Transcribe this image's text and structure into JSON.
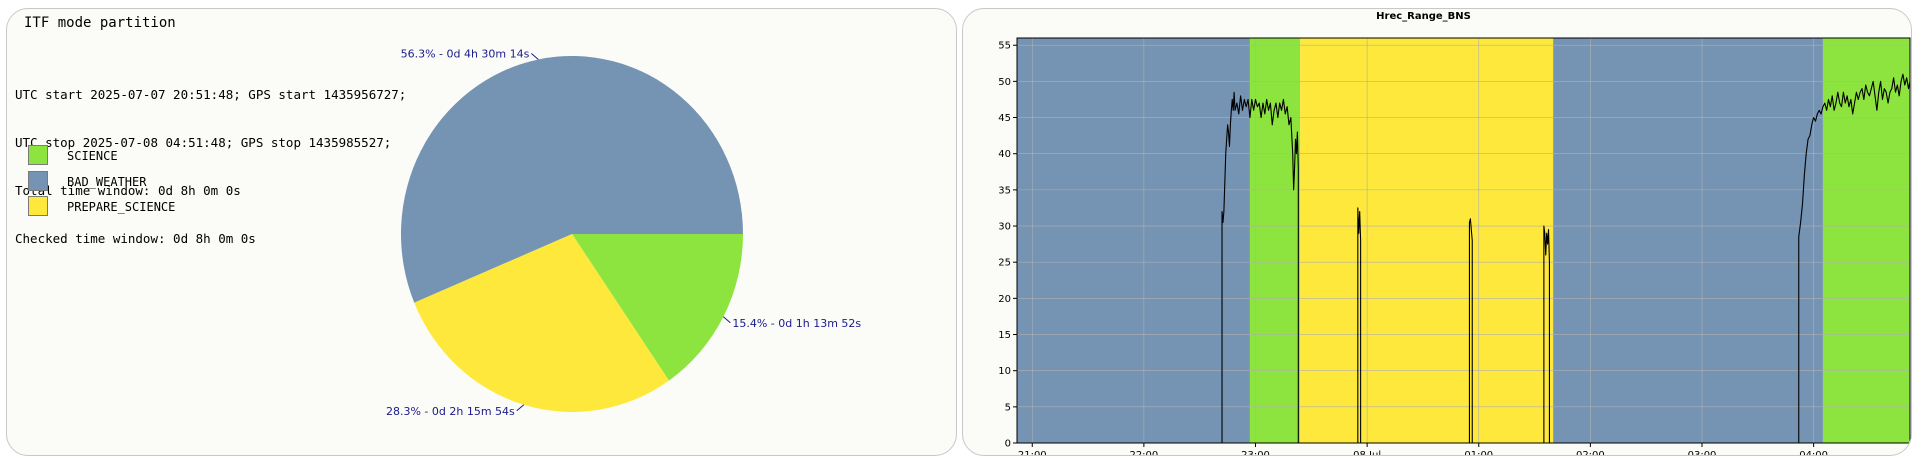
{
  "colors": {
    "science": "#8ee43e",
    "bad_weather": "#7593b3",
    "prepare_science": "#fde83b",
    "label_text": "#1a1a8c",
    "line": "#000000",
    "grid": "#b0b0b0"
  },
  "left_panel": {
    "title": "ITF mode partition",
    "info_lines": [
      "UTC start 2025-07-07 20:51:48; GPS start 1435956727;",
      "UTC stop 2025-07-08 04:51:48; GPS stop 1435985527;",
      "Total time window: 0d 8h 0m 0s",
      "Checked time window: 0d 8h 0m 0s"
    ],
    "legend": [
      {
        "label": "SCIENCE",
        "color": "#8ee43e"
      },
      {
        "label": "BAD_WEATHER",
        "color": "#7593b3"
      },
      {
        "label": "PREPARE_SCIENCE",
        "color": "#fde83b"
      }
    ]
  },
  "chart_data": [
    {
      "type": "pie",
      "slices": [
        {
          "name": "SCIENCE",
          "percent": 15.4,
          "label": "15.4% - 0d 1h 13m 52s",
          "color": "#8ee43e"
        },
        {
          "name": "PREPARE_SCIENCE",
          "percent": 28.3,
          "label": "28.3% - 0d 2h 15m 54s",
          "color": "#fde83b"
        },
        {
          "name": "BAD_WEATHER",
          "percent": 56.3,
          "label": "56.3% - 0d 4h 30m 14s",
          "color": "#7593b3"
        }
      ]
    },
    {
      "type": "line",
      "title": "Hrec_Range_BNS",
      "xlabel": "",
      "ylabel": "",
      "x_range": [
        "2025-07-07 20:51:48",
        "2025-07-08 04:51:48"
      ],
      "ylim": [
        0,
        56
      ],
      "yticks": [
        0,
        5,
        10,
        15,
        20,
        25,
        30,
        35,
        40,
        45,
        50,
        55
      ],
      "xticks": [
        {
          "time": "2025-07-07 21:00",
          "label": "21:00"
        },
        {
          "time": "2025-07-07 22:00",
          "label": "22:00"
        },
        {
          "time": "2025-07-07 23:00",
          "label": "23:00"
        },
        {
          "time": "2025-07-08 00:00",
          "label": "08 Jul"
        },
        {
          "time": "2025-07-08 01:00",
          "label": "01:00"
        },
        {
          "time": "2025-07-08 02:00",
          "label": "02:00"
        },
        {
          "time": "2025-07-08 03:00",
          "label": "03:00"
        },
        {
          "time": "2025-07-08 04:00",
          "label": "04:00"
        }
      ],
      "grid": true,
      "background_segments": [
        {
          "mode": "BAD_WEATHER",
          "start": "2025-07-07 20:51:48",
          "end": "2025-07-07 22:57:00"
        },
        {
          "mode": "SCIENCE",
          "start": "2025-07-07 22:57:00",
          "end": "2025-07-07 23:24:00"
        },
        {
          "mode": "PREPARE_SCIENCE",
          "start": "2025-07-07 23:24:00",
          "end": "2025-07-08 01:40:00"
        },
        {
          "mode": "BAD_WEATHER",
          "start": "2025-07-08 01:40:00",
          "end": "2025-07-08 04:05:00"
        },
        {
          "mode": "SCIENCE",
          "start": "2025-07-08 04:05:00",
          "end": "2025-07-08 04:51:48"
        }
      ],
      "series": [
        {
          "points": [
            [
              "2025-07-07 22:42:00",
              0
            ],
            [
              "2025-07-07 22:42:00",
              32
            ],
            [
              "2025-07-07 22:42:30",
              30.5
            ],
            [
              "2025-07-07 22:43:00",
              32
            ],
            [
              "2025-07-07 22:43:30",
              36
            ],
            [
              "2025-07-07 22:44:00",
              40
            ],
            [
              "2025-07-07 22:44:30",
              42
            ],
            [
              "2025-07-07 22:45:00",
              44
            ],
            [
              "2025-07-07 22:45:30",
              43
            ],
            [
              "2025-07-07 22:46:00",
              41
            ],
            [
              "2025-07-07 22:46:30",
              44
            ],
            [
              "2025-07-07 22:47:00",
              46
            ],
            [
              "2025-07-07 22:47:30",
              47.5
            ],
            [
              "2025-07-07 22:48:00",
              46
            ],
            [
              "2025-07-07 22:48:30",
              48.5
            ],
            [
              "2025-07-07 22:49:00",
              46
            ],
            [
              "2025-07-07 22:50:00",
              47
            ],
            [
              "2025-07-07 22:51:00",
              45.5
            ],
            [
              "2025-07-07 22:52:00",
              48
            ],
            [
              "2025-07-07 22:53:00",
              46
            ],
            [
              "2025-07-07 22:54:00",
              47.5
            ],
            [
              "2025-07-07 22:55:00",
              46.5
            ],
            [
              "2025-07-07 22:56:00",
              47.5
            ],
            [
              "2025-07-07 22:57:00",
              45
            ],
            [
              "2025-07-07 22:58:00",
              47.5
            ],
            [
              "2025-07-07 22:59:00",
              46
            ],
            [
              "2025-07-07 23:00:00",
              47.5
            ],
            [
              "2025-07-07 23:01:00",
              46.5
            ],
            [
              "2025-07-07 23:02:00",
              47
            ],
            [
              "2025-07-07 23:03:00",
              45
            ],
            [
              "2025-07-07 23:04:00",
              47
            ],
            [
              "2025-07-07 23:05:00",
              45.5
            ],
            [
              "2025-07-07 23:06:00",
              47.5
            ],
            [
              "2025-07-07 23:07:00",
              46
            ],
            [
              "2025-07-07 23:08:00",
              47
            ],
            [
              "2025-07-07 23:09:00",
              44
            ],
            [
              "2025-07-07 23:10:00",
              46
            ],
            [
              "2025-07-07 23:11:00",
              47
            ],
            [
              "2025-07-07 23:12:00",
              45
            ],
            [
              "2025-07-07 23:13:00",
              47
            ],
            [
              "2025-07-07 23:14:00",
              46
            ],
            [
              "2025-07-07 23:15:00",
              47.5
            ],
            [
              "2025-07-07 23:16:00",
              45.5
            ],
            [
              "2025-07-07 23:17:00",
              46.5
            ],
            [
              "2025-07-07 23:18:00",
              44
            ],
            [
              "2025-07-07 23:19:00",
              45
            ],
            [
              "2025-07-07 23:20:00",
              40
            ],
            [
              "2025-07-07 23:20:30",
              35
            ],
            [
              "2025-07-07 23:21:00",
              38
            ],
            [
              "2025-07-07 23:21:30",
              42
            ],
            [
              "2025-07-07 23:22:00",
              40
            ],
            [
              "2025-07-07 23:22:30",
              43
            ],
            [
              "2025-07-07 23:23:00",
              38
            ],
            [
              "2025-07-07 23:23:00",
              0
            ],
            [
              "2025-07-07 23:55:00",
              0
            ],
            [
              "2025-07-07 23:55:00",
              32.5
            ],
            [
              "2025-07-07 23:55:30",
              29
            ],
            [
              "2025-07-07 23:56:00",
              32
            ],
            [
              "2025-07-07 23:56:30",
              28
            ],
            [
              "2025-07-07 23:56:30",
              0
            ],
            [
              "2025-07-08 00:55:00",
              0
            ],
            [
              "2025-07-08 00:55:00",
              30.5
            ],
            [
              "2025-07-08 00:55:30",
              31
            ],
            [
              "2025-07-08 00:56:00",
              29.5
            ],
            [
              "2025-07-08 00:56:30",
              28
            ],
            [
              "2025-07-08 00:56:30",
              0
            ],
            [
              "2025-07-08 01:35:00",
              0
            ],
            [
              "2025-07-08 01:35:00",
              30
            ],
            [
              "2025-07-08 01:35:30",
              29
            ],
            [
              "2025-07-08 01:36:00",
              26
            ],
            [
              "2025-07-08 01:36:30",
              29
            ],
            [
              "2025-07-08 01:37:00",
              27.5
            ],
            [
              "2025-07-08 01:37:30",
              29.5
            ],
            [
              "2025-07-08 01:38:00",
              25
            ],
            [
              "2025-07-08 01:38:00",
              0
            ],
            [
              "2025-07-08 03:52:00",
              0
            ],
            [
              "2025-07-08 03:52:00",
              28.5
            ],
            [
              "2025-07-08 03:53:00",
              30.5
            ],
            [
              "2025-07-08 03:54:00",
              33
            ],
            [
              "2025-07-08 03:55:00",
              37
            ],
            [
              "2025-07-08 03:56:00",
              40
            ],
            [
              "2025-07-08 03:57:00",
              42
            ],
            [
              "2025-07-08 03:58:00",
              42.5
            ],
            [
              "2025-07-08 03:59:00",
              44
            ],
            [
              "2025-07-08 04:00:00",
              45
            ],
            [
              "2025-07-08 04:01:00",
              44.5
            ],
            [
              "2025-07-08 04:02:00",
              45.5
            ],
            [
              "2025-07-08 04:03:00",
              46
            ],
            [
              "2025-07-08 04:04:00",
              45.5
            ],
            [
              "2025-07-08 04:05:00",
              46.5
            ],
            [
              "2025-07-08 04:06:00",
              47
            ],
            [
              "2025-07-08 04:07:00",
              46
            ],
            [
              "2025-07-08 04:08:00",
              47.5
            ],
            [
              "2025-07-08 04:09:00",
              46.5
            ],
            [
              "2025-07-08 04:10:00",
              48
            ],
            [
              "2025-07-08 04:11:00",
              46
            ],
            [
              "2025-07-08 04:12:00",
              47
            ],
            [
              "2025-07-08 04:13:00",
              48.5
            ],
            [
              "2025-07-08 04:14:00",
              47
            ],
            [
              "2025-07-08 04:15:00",
              46.5
            ],
            [
              "2025-07-08 04:16:00",
              48.5
            ],
            [
              "2025-07-08 04:17:00",
              47
            ],
            [
              "2025-07-08 04:18:00",
              48
            ],
            [
              "2025-07-08 04:19:00",
              46.5
            ],
            [
              "2025-07-08 04:20:00",
              47.5
            ],
            [
              "2025-07-08 04:21:00",
              45.5
            ],
            [
              "2025-07-08 04:22:00",
              47
            ],
            [
              "2025-07-08 04:23:00",
              48.5
            ],
            [
              "2025-07-08 04:24:00",
              47.5
            ],
            [
              "2025-07-08 04:25:00",
              48.5
            ],
            [
              "2025-07-08 04:26:00",
              49
            ],
            [
              "2025-07-08 04:27:00",
              47.5
            ],
            [
              "2025-07-08 04:28:00",
              49.5
            ],
            [
              "2025-07-08 04:29:00",
              48.5
            ],
            [
              "2025-07-08 04:30:00",
              48
            ],
            [
              "2025-07-08 04:31:00",
              49
            ],
            [
              "2025-07-08 04:32:00",
              50
            ],
            [
              "2025-07-08 04:33:00",
              48
            ],
            [
              "2025-07-08 04:34:00",
              46
            ],
            [
              "2025-07-08 04:35:00",
              48.5
            ],
            [
              "2025-07-08 04:36:00",
              50
            ],
            [
              "2025-07-08 04:37:00",
              47.5
            ],
            [
              "2025-07-08 04:38:00",
              49
            ],
            [
              "2025-07-08 04:39:00",
              48.5
            ],
            [
              "2025-07-08 04:40:00",
              47
            ],
            [
              "2025-07-08 04:41:00",
              48.5
            ],
            [
              "2025-07-08 04:42:00",
              49
            ],
            [
              "2025-07-08 04:43:00",
              50.5
            ],
            [
              "2025-07-08 04:44:00",
              48.5
            ],
            [
              "2025-07-08 04:45:00",
              49.5
            ],
            [
              "2025-07-08 04:46:00",
              48
            ],
            [
              "2025-07-08 04:47:00",
              50
            ],
            [
              "2025-07-08 04:48:00",
              51
            ],
            [
              "2025-07-08 04:49:00",
              49.5
            ],
            [
              "2025-07-08 04:50:00",
              50.5
            ],
            [
              "2025-07-08 04:51:00",
              49
            ],
            [
              "2025-07-08 04:51:48",
              50
            ]
          ]
        }
      ]
    }
  ]
}
